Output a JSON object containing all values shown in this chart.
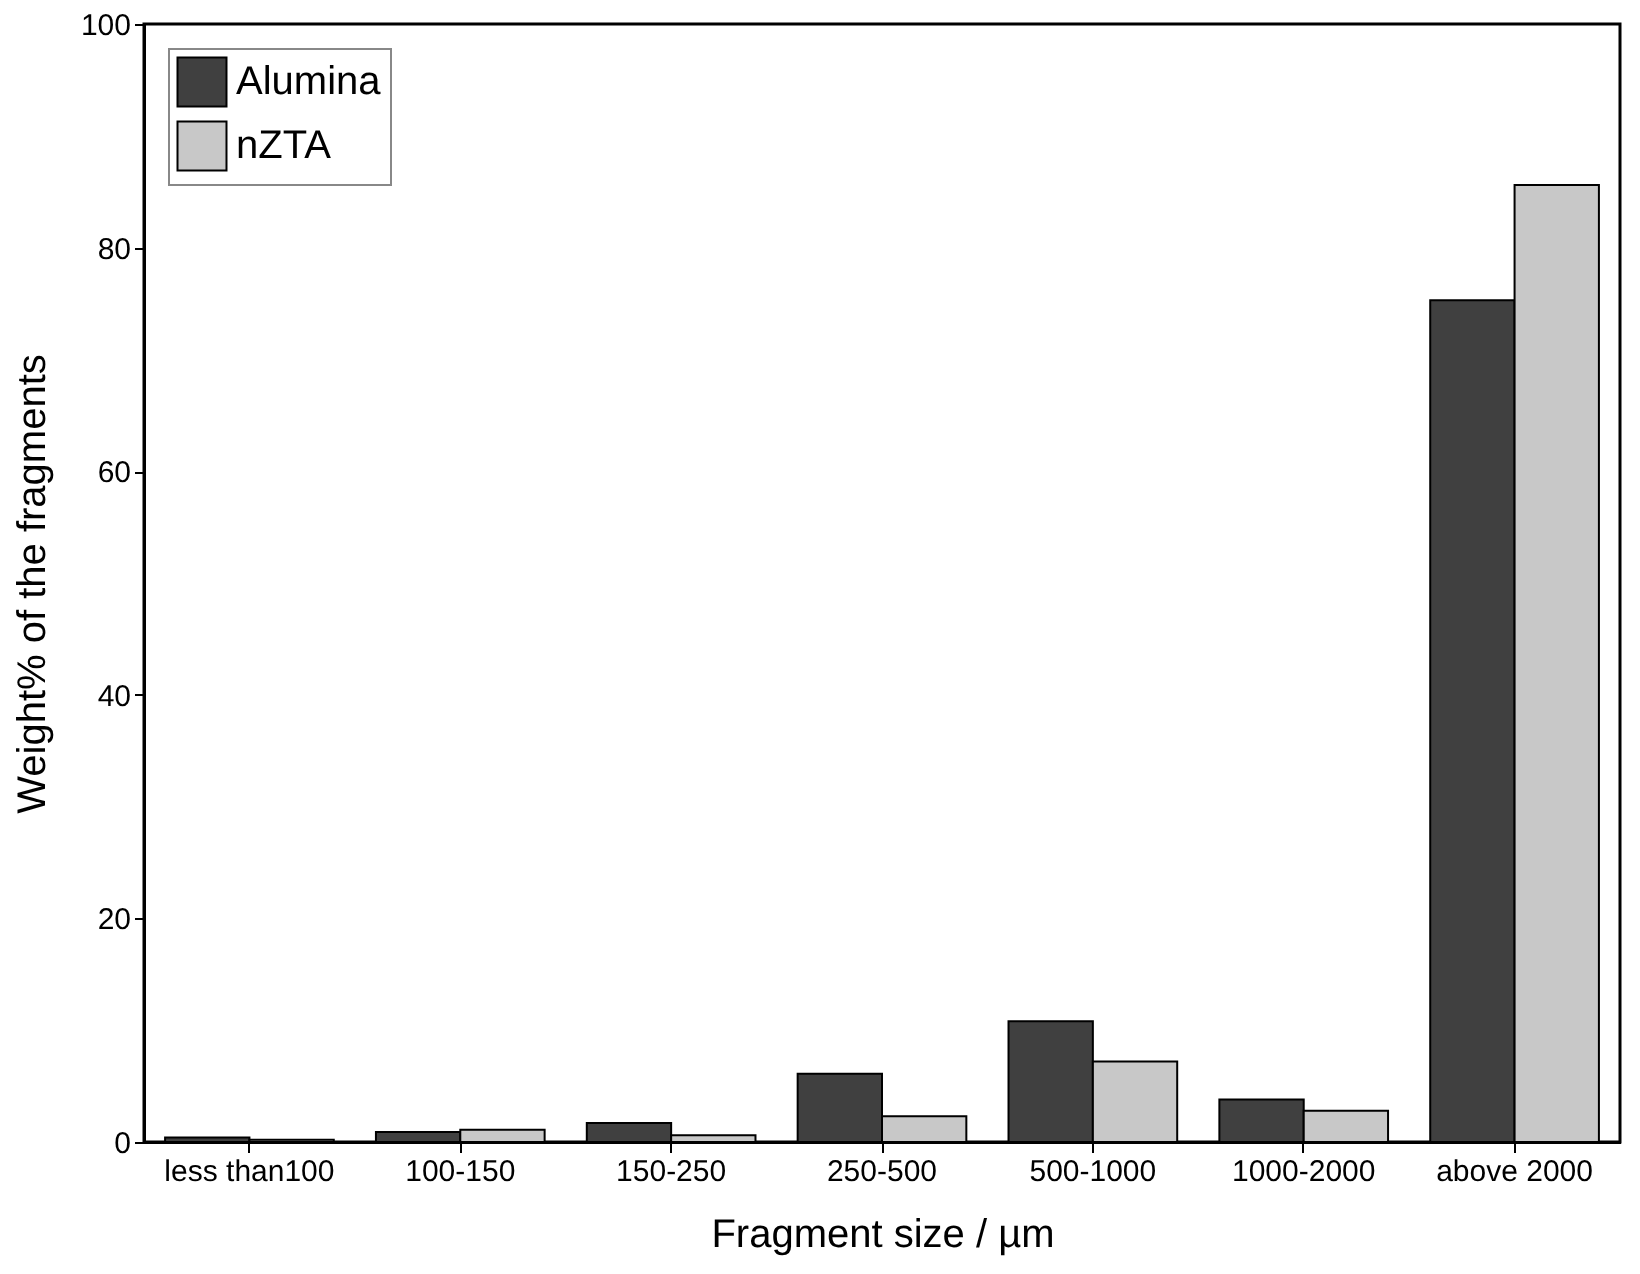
{
  "chart_data": {
    "type": "bar",
    "xlabel": "Fragment size / µm",
    "ylabel": "Weight% of the fragments",
    "categories": [
      "less than100",
      "100-150",
      "150-250",
      "250-500",
      "500-1000",
      "1000-2000",
      "above 2000"
    ],
    "series": [
      {
        "name": "Alumina",
        "color": "#404040",
        "values": [
          0.4,
          0.9,
          1.7,
          6.1,
          10.8,
          3.8,
          75.3
        ]
      },
      {
        "name": "nZTA",
        "color": "#c8c8c8",
        "values": [
          0.2,
          1.1,
          0.6,
          2.3,
          7.2,
          2.8,
          85.6
        ]
      }
    ],
    "ylim": [
      0,
      100
    ],
    "yticks": [
      0,
      20,
      40,
      60,
      80,
      100
    ],
    "grid": false,
    "legend": "top left"
  }
}
